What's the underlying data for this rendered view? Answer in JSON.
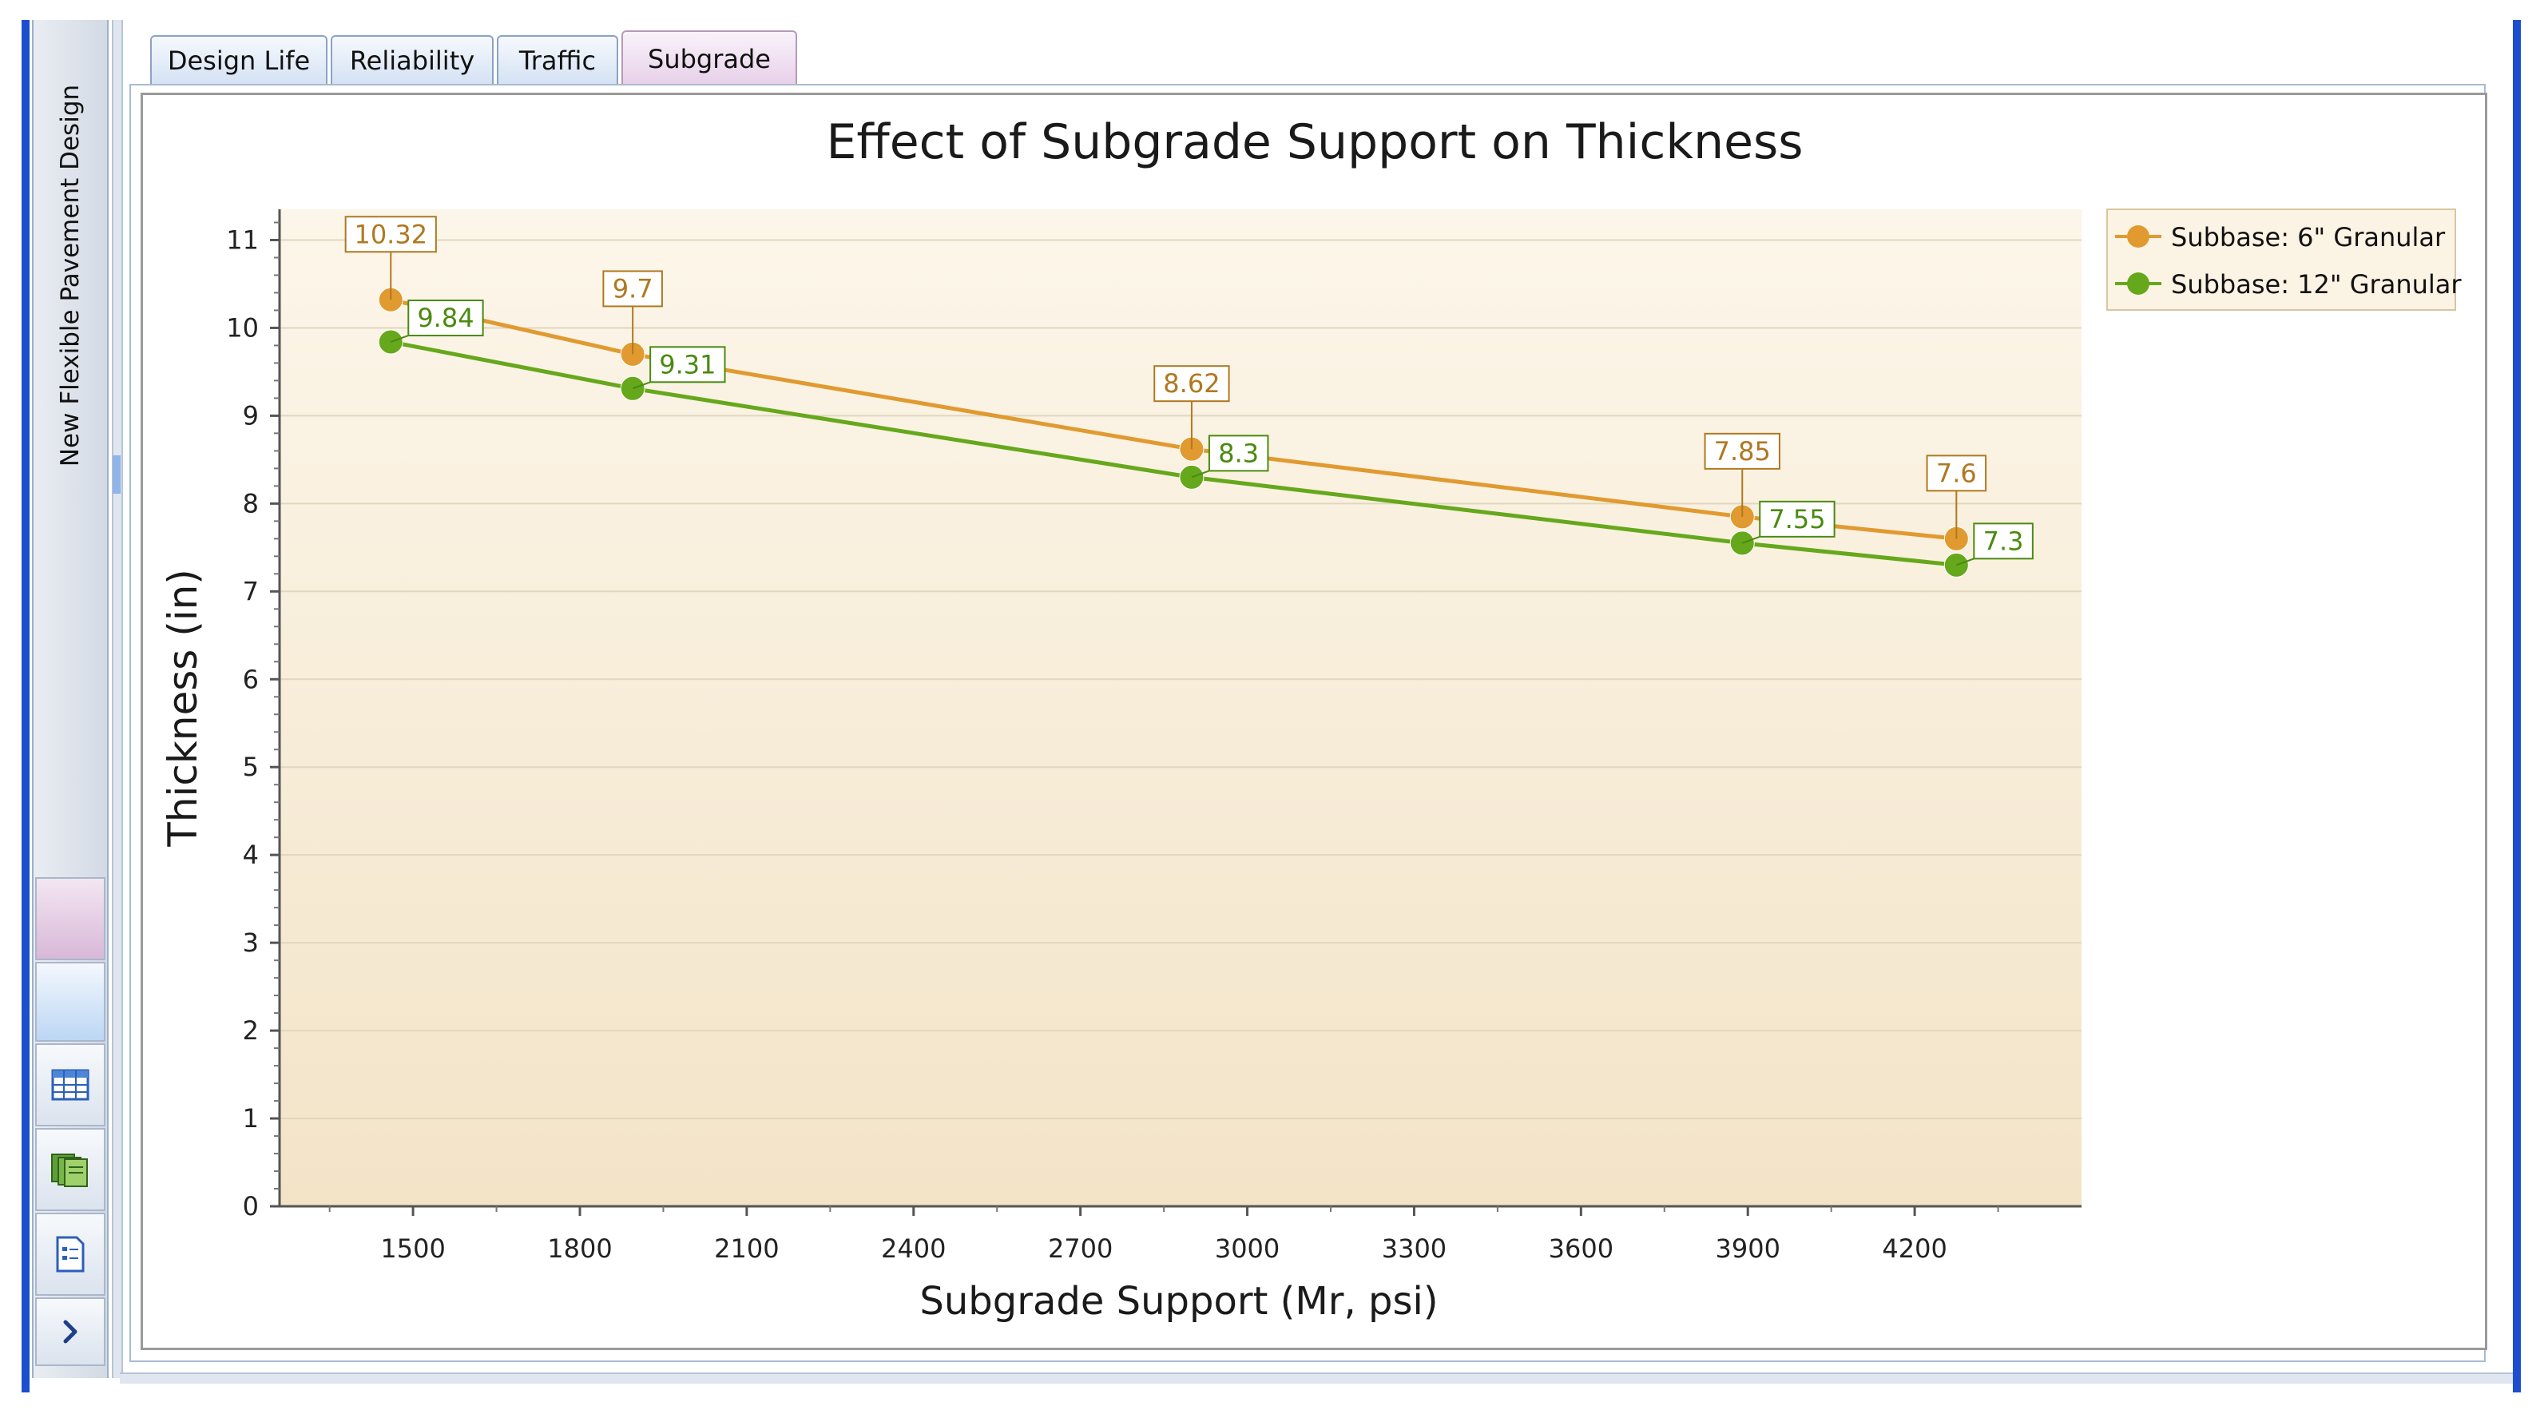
{
  "sidebar": {
    "title": "New Flexible Pavement Design",
    "buttons": [
      {
        "name": "nav-button-pink",
        "icon": ""
      },
      {
        "name": "nav-button-blue",
        "icon": ""
      },
      {
        "name": "table-view-button",
        "icon": "table-icon"
      },
      {
        "name": "pages-button",
        "icon": "pages-icon"
      },
      {
        "name": "report-button",
        "icon": "report-icon"
      },
      {
        "name": "expand-button",
        "icon": "chevron-right-icon"
      }
    ]
  },
  "tabs": [
    {
      "label": "Design Life",
      "active": false
    },
    {
      "label": "Reliability",
      "active": false
    },
    {
      "label": "Traffic",
      "active": false
    },
    {
      "label": "Subgrade",
      "active": true
    }
  ],
  "colors": {
    "series1": "#e09a30",
    "series2": "#66a81c",
    "frame": "#1c4fd0",
    "plotTop": "#fcf6ea",
    "plotBottom": "#f3e4c8"
  },
  "chart_data": {
    "type": "line",
    "title": "Effect of Subgrade Support on Thickness",
    "xlabel": "Subgrade Support (Mr, psi)",
    "ylabel": "Thickness (in)",
    "xlim": [
      1260,
      4500
    ],
    "ylim": [
      0,
      11.35
    ],
    "xticks": [
      1500,
      1800,
      2100,
      2400,
      2700,
      3000,
      3300,
      3600,
      3900,
      4200
    ],
    "yticks": [
      0,
      1,
      2,
      3,
      4,
      5,
      6,
      7,
      8,
      9,
      10,
      11
    ],
    "grid": "horizontal",
    "legend_position": "top-right",
    "series": [
      {
        "name": "Subbase: 6\" Granular",
        "color": "#e09a30",
        "label_color": "#b07820",
        "x": [
          1460,
          1895,
          2900,
          3890,
          4275
        ],
        "y": [
          10.32,
          9.7,
          8.62,
          7.85,
          7.6
        ],
        "labels": [
          "10.32",
          "9.7",
          "8.62",
          "7.85",
          "7.6"
        ]
      },
      {
        "name": "Subbase: 12\" Granular",
        "color": "#66a81c",
        "label_color": "#4a8a10",
        "x": [
          1460,
          1895,
          2900,
          3890,
          4275
        ],
        "y": [
          9.84,
          9.31,
          8.3,
          7.55,
          7.3
        ],
        "labels": [
          "9.84",
          "9.31",
          "8.3",
          "7.55",
          "7.3"
        ]
      }
    ]
  }
}
